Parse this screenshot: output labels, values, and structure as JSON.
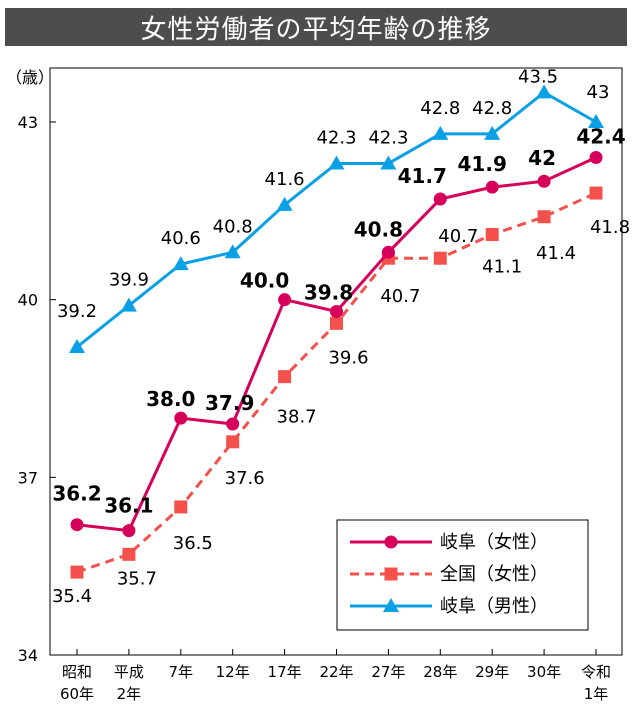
{
  "title": "女性労働者の平均年齢の推移",
  "chart_data": {
    "type": "line",
    "title": "女性労働者の平均年齢の推移",
    "ylabel": "（歳）",
    "ylim": [
      34,
      43
    ],
    "yticks": [
      34,
      37,
      40,
      43
    ],
    "categories": [
      [
        "昭和",
        "60年"
      ],
      [
        "平成",
        "2年"
      ],
      [
        "7年"
      ],
      [
        "12年"
      ],
      [
        "17年"
      ],
      [
        "22年"
      ],
      [
        "27年"
      ],
      [
        "28年"
      ],
      [
        "29年"
      ],
      [
        "30年"
      ],
      [
        "令和",
        "1年"
      ]
    ],
    "series": [
      {
        "name": "岐阜（女性）",
        "color": "#d6005b",
        "style": "solid",
        "marker": "circle",
        "values": [
          36.2,
          36.1,
          38.0,
          37.9,
          40.0,
          39.8,
          40.8,
          41.7,
          41.9,
          42,
          42.4
        ],
        "labels": [
          "36.2",
          "36.1",
          "38.0",
          "37.9",
          "40.0",
          "39.8",
          "40.8",
          "41.7",
          "41.9",
          "42",
          "42.4"
        ]
      },
      {
        "name": "全国（女性）",
        "color": "#f4504c",
        "style": "dashed",
        "marker": "square",
        "values": [
          35.4,
          35.7,
          36.5,
          37.6,
          38.7,
          39.6,
          40.7,
          40.7,
          41.1,
          41.4,
          41.8
        ],
        "labels": [
          "35.4",
          "35.7",
          "36.5",
          "37.6",
          "38.7",
          "39.6",
          "40.7",
          "40.7",
          "41.1",
          "41.4",
          "41.8"
        ]
      },
      {
        "name": "岐阜（男性）",
        "color": "#0aa0e6",
        "style": "solid",
        "marker": "triangle",
        "values": [
          39.2,
          39.9,
          40.6,
          40.8,
          41.6,
          42.3,
          42.3,
          42.8,
          42.8,
          43.5,
          43
        ],
        "labels": [
          "39.2",
          "39.9",
          "40.6",
          "40.8",
          "41.6",
          "42.3",
          "42.3",
          "42.8",
          "42.8",
          "43.5",
          "43"
        ]
      }
    ],
    "legend_position": "bottom-right",
    "grid": false
  }
}
